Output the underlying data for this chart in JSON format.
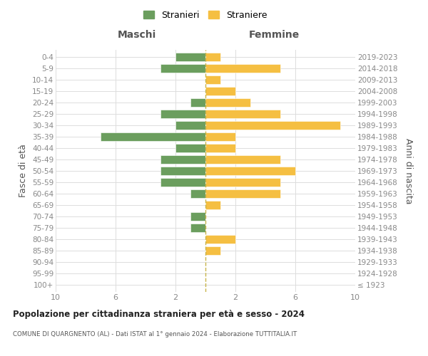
{
  "age_groups": [
    "100+",
    "95-99",
    "90-94",
    "85-89",
    "80-84",
    "75-79",
    "70-74",
    "65-69",
    "60-64",
    "55-59",
    "50-54",
    "45-49",
    "40-44",
    "35-39",
    "30-34",
    "25-29",
    "20-24",
    "15-19",
    "10-14",
    "5-9",
    "0-4"
  ],
  "birth_years": [
    "≤ 1923",
    "1924-1928",
    "1929-1933",
    "1934-1938",
    "1939-1943",
    "1944-1948",
    "1949-1953",
    "1954-1958",
    "1959-1963",
    "1964-1968",
    "1969-1973",
    "1974-1978",
    "1979-1983",
    "1984-1988",
    "1989-1993",
    "1994-1998",
    "1999-2003",
    "2004-2008",
    "2009-2013",
    "2014-2018",
    "2019-2023"
  ],
  "maschi": [
    0,
    0,
    0,
    0,
    0,
    1,
    1,
    0,
    1,
    3,
    3,
    3,
    2,
    7,
    2,
    3,
    1,
    0,
    0,
    3,
    2
  ],
  "femmine": [
    0,
    0,
    0,
    1,
    2,
    0,
    0,
    1,
    5,
    5,
    6,
    5,
    2,
    2,
    9,
    5,
    3,
    2,
    1,
    5,
    1
  ],
  "color_maschi": "#6b9e5e",
  "color_femmine": "#f5bf42",
  "title": "Popolazione per cittadinanza straniera per età e sesso - 2024",
  "subtitle": "COMUNE DI QUARGNENTO (AL) - Dati ISTAT al 1° gennaio 2024 - Elaborazione TUTTITALIA.IT",
  "xlabel_left": "Maschi",
  "xlabel_right": "Femmine",
  "ylabel_left": "Fasce di età",
  "ylabel_right": "Anni di nascita",
  "legend_maschi": "Stranieri",
  "legend_femmine": "Straniere",
  "xlim": 10,
  "background_color": "#ffffff",
  "grid_color": "#dddddd"
}
